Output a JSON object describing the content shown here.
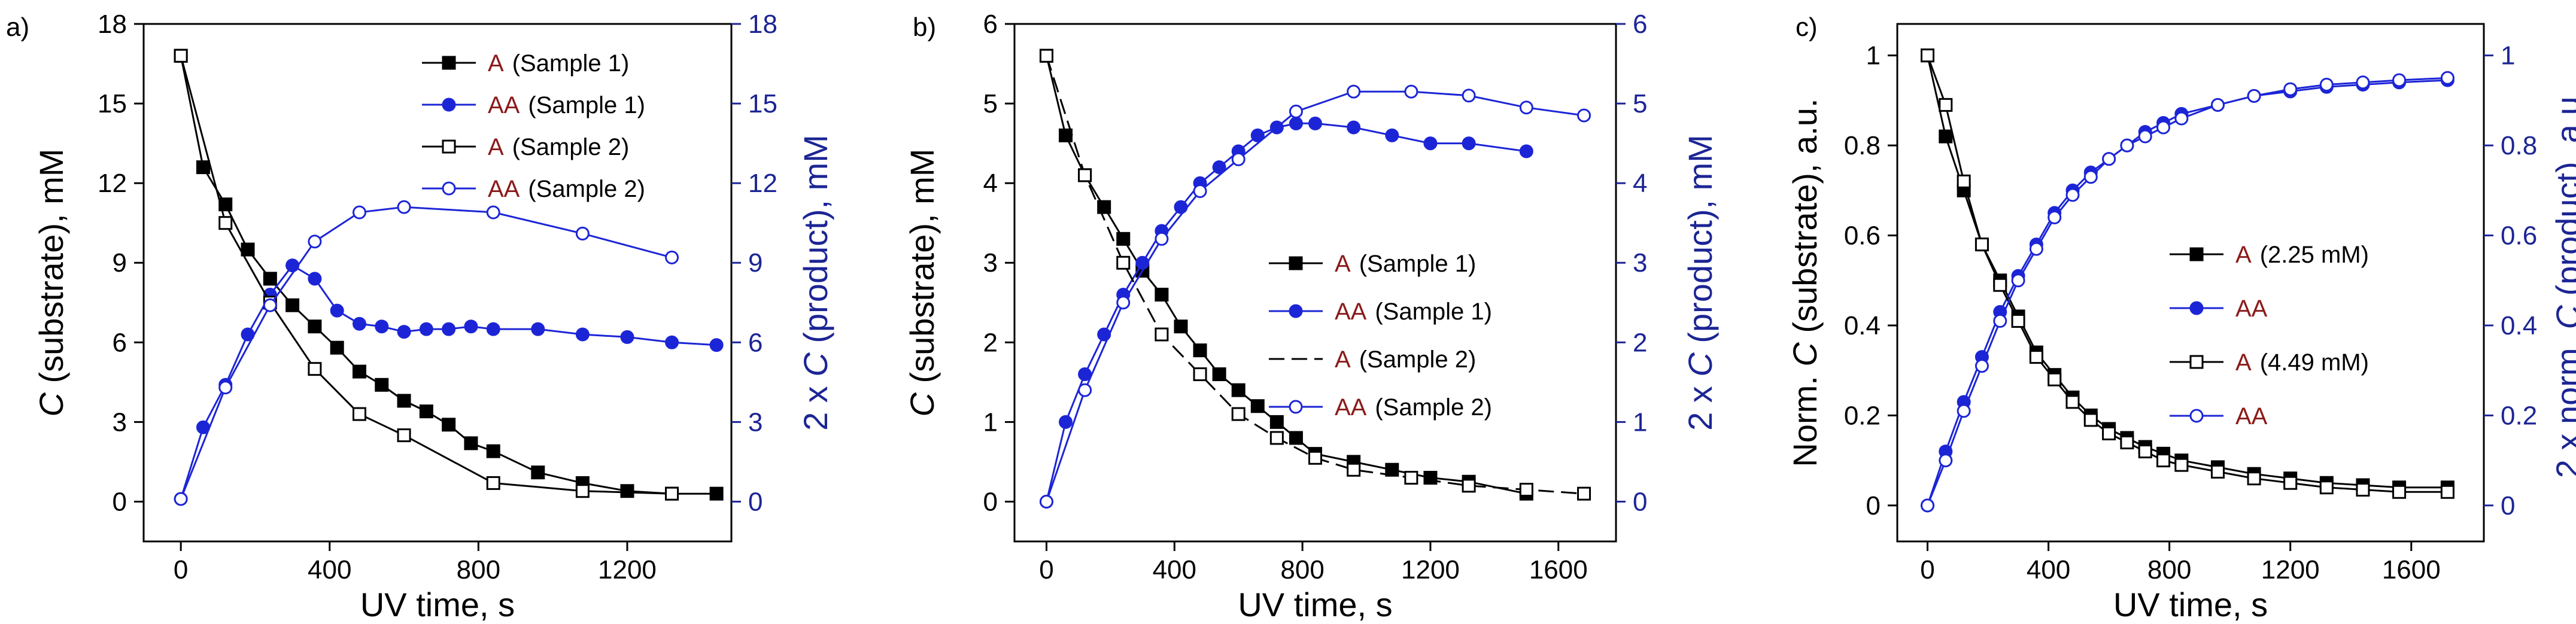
{
  "figure_title": "",
  "colors": {
    "substrate": "#000000",
    "product": "#1c25d6",
    "right_axis": "#1c2594",
    "species_label": "#8b1a1a"
  },
  "chart_data": [
    {
      "type": "line",
      "panel_label": "a)",
      "title": "",
      "xlabel": "UV time, s",
      "ylabel_left": {
        "italic": "C",
        "rest": " (substrate), mM"
      },
      "ylabel_right": {
        "prefix": "2 x ",
        "italic": "C",
        "rest": " (product), mM"
      },
      "xlim": [
        -100,
        1480
      ],
      "ylim": [
        -1.5,
        18
      ],
      "ylim_right": [
        -1.5,
        18
      ],
      "xticks": [
        0,
        400,
        800,
        1200
      ],
      "yticks": [
        0,
        3,
        6,
        9,
        12,
        15,
        18
      ],
      "yticks_right": [
        0,
        3,
        6,
        9,
        12,
        15,
        18
      ],
      "legend_position": "top-right",
      "series": [
        {
          "name": "Sample 1",
          "label_species": "A",
          "label_detail": "(Sample 1)",
          "marker": "square-filled",
          "line": "solid",
          "color": "#000000",
          "axis": "left",
          "x": [
            0,
            60,
            120,
            180,
            240,
            300,
            360,
            420,
            480,
            540,
            600,
            660,
            720,
            780,
            840,
            960,
            1080,
            1200,
            1320,
            1440
          ],
          "y": [
            16.8,
            12.6,
            11.2,
            9.5,
            8.4,
            7.4,
            6.6,
            5.8,
            4.9,
            4.4,
            3.8,
            3.4,
            2.9,
            2.2,
            1.9,
            1.1,
            0.7,
            0.4,
            0.3,
            0.3
          ]
        },
        {
          "name": "Sample 1",
          "label_species": "AA",
          "label_detail": "(Sample 1)",
          "marker": "circle-filled",
          "line": "solid",
          "color": "#1c25d6",
          "axis": "right",
          "x": [
            0,
            60,
            120,
            180,
            240,
            300,
            360,
            420,
            480,
            540,
            600,
            660,
            720,
            780,
            840,
            960,
            1080,
            1200,
            1320,
            1440
          ],
          "y": [
            0.1,
            2.8,
            4.4,
            6.3,
            7.8,
            8.9,
            8.4,
            7.2,
            6.7,
            6.6,
            6.4,
            6.5,
            6.5,
            6.6,
            6.5,
            6.5,
            6.3,
            6.2,
            6.0,
            5.9
          ]
        },
        {
          "name": "Sample 2",
          "label_species": "A",
          "label_detail": "(Sample 2)",
          "marker": "square-open",
          "line": "solid",
          "color": "#000000",
          "axis": "left",
          "x": [
            0,
            120,
            240,
            360,
            480,
            600,
            840,
            1080,
            1320
          ],
          "y": [
            16.8,
            10.5,
            7.5,
            5.0,
            3.3,
            2.5,
            0.7,
            0.4,
            0.3
          ]
        },
        {
          "name": "Sample 2",
          "label_species": "AA",
          "label_detail": "(Sample 2)",
          "marker": "circle-open",
          "line": "solid",
          "color": "#1c25d6",
          "axis": "right",
          "x": [
            0,
            120,
            240,
            360,
            480,
            600,
            840,
            1080,
            1320
          ],
          "y": [
            0.1,
            4.3,
            7.4,
            9.8,
            10.9,
            11.1,
            10.9,
            10.1,
            9.2
          ]
        }
      ]
    },
    {
      "type": "line",
      "panel_label": "b)",
      "title": "",
      "xlabel": "UV time, s",
      "ylabel_left": {
        "italic": "C",
        "rest": " (substrate), mM"
      },
      "ylabel_right": {
        "prefix": "2 x ",
        "italic": "C",
        "rest": " (product), mM"
      },
      "xlim": [
        -100,
        1780
      ],
      "ylim": [
        -0.5,
        6
      ],
      "ylim_right": [
        -0.5,
        6
      ],
      "xticks": [
        0,
        400,
        800,
        1200,
        1600
      ],
      "yticks": [
        0,
        1,
        2,
        3,
        4,
        5,
        6
      ],
      "yticks_right": [
        0,
        1,
        2,
        3,
        4,
        5,
        6
      ],
      "legend_position": "center-right",
      "series": [
        {
          "name": "Sample 1",
          "label_species": "A",
          "label_detail": "(Sample 1)",
          "marker": "square-filled",
          "line": "solid",
          "color": "#000000",
          "axis": "left",
          "x": [
            0,
            60,
            120,
            180,
            240,
            300,
            360,
            420,
            480,
            540,
            600,
            660,
            720,
            780,
            840,
            960,
            1080,
            1200,
            1320,
            1500
          ],
          "y": [
            5.6,
            4.6,
            4.1,
            3.7,
            3.3,
            2.9,
            2.6,
            2.2,
            1.9,
            1.6,
            1.4,
            1.2,
            1.0,
            0.8,
            0.6,
            0.5,
            0.4,
            0.3,
            0.25,
            0.1
          ]
        },
        {
          "name": "Sample 1",
          "label_species": "AA",
          "label_detail": "(Sample 1)",
          "marker": "circle-filled",
          "line": "solid",
          "color": "#1c25d6",
          "axis": "right",
          "x": [
            0,
            60,
            120,
            180,
            240,
            300,
            360,
            420,
            480,
            540,
            600,
            660,
            720,
            780,
            840,
            960,
            1080,
            1200,
            1320,
            1500
          ],
          "y": [
            0.0,
            1.0,
            1.6,
            2.1,
            2.6,
            3.0,
            3.4,
            3.7,
            4.0,
            4.2,
            4.4,
            4.6,
            4.7,
            4.75,
            4.75,
            4.7,
            4.6,
            4.5,
            4.5,
            4.4
          ]
        },
        {
          "name": "Sample 2",
          "label_species": "A",
          "label_detail": "(Sample 2)",
          "marker": "square-open",
          "line": "dashed",
          "color": "#000000",
          "axis": "left",
          "x": [
            0,
            120,
            240,
            360,
            480,
            600,
            720,
            840,
            960,
            1140,
            1320,
            1500,
            1680
          ],
          "y": [
            5.6,
            4.1,
            3.0,
            2.1,
            1.6,
            1.1,
            0.8,
            0.55,
            0.4,
            0.3,
            0.2,
            0.15,
            0.1
          ]
        },
        {
          "name": "Sample 2",
          "label_species": "AA",
          "label_detail": "(Sample 2)",
          "marker": "circle-open",
          "line": "solid",
          "color": "#1c25d6",
          "axis": "right",
          "x": [
            0,
            120,
            240,
            360,
            480,
            600,
            780,
            960,
            1140,
            1320,
            1500,
            1680
          ],
          "y": [
            0.0,
            1.4,
            2.5,
            3.3,
            3.9,
            4.3,
            4.9,
            5.15,
            5.15,
            5.1,
            4.95,
            4.85
          ]
        }
      ]
    },
    {
      "type": "line",
      "panel_label": "c)",
      "title": "",
      "xlabel": "UV time, s",
      "ylabel_left": {
        "prefix": "Norm. ",
        "italic": "C",
        "rest": " (substrate), a.u."
      },
      "ylabel_right": {
        "prefix": "2 x norm. ",
        "italic": "C",
        "rest": " (product), a.u."
      },
      "xlim": [
        -100,
        1840
      ],
      "ylim": [
        -0.08,
        1.07
      ],
      "ylim_right": [
        -0.08,
        1.07
      ],
      "xticks": [
        0,
        400,
        800,
        1200,
        1600
      ],
      "yticks": [
        0,
        0.2,
        0.4,
        0.6,
        0.8,
        1
      ],
      "yticks_right": [
        0,
        0.2,
        0.4,
        0.6,
        0.8,
        1
      ],
      "legend_position": "center-right",
      "series": [
        {
          "name": "A (2.25 mM)",
          "label_species": "A",
          "label_detail": "(2.25 mM)",
          "marker": "square-filled",
          "line": "solid",
          "color": "#000000",
          "axis": "left",
          "x": [
            0,
            60,
            120,
            180,
            240,
            300,
            360,
            420,
            480,
            540,
            600,
            660,
            720,
            780,
            840,
            960,
            1080,
            1200,
            1320,
            1440,
            1560,
            1720
          ],
          "y": [
            1.0,
            0.82,
            0.7,
            0.58,
            0.5,
            0.42,
            0.34,
            0.29,
            0.24,
            0.2,
            0.17,
            0.15,
            0.13,
            0.115,
            0.1,
            0.085,
            0.07,
            0.06,
            0.05,
            0.045,
            0.04,
            0.04
          ]
        },
        {
          "name": "AA",
          "label_species": "AA",
          "label_detail": "",
          "marker": "circle-filled",
          "line": "solid",
          "color": "#1c25d6",
          "axis": "right",
          "x": [
            0,
            60,
            120,
            180,
            240,
            300,
            360,
            420,
            480,
            540,
            600,
            660,
            720,
            780,
            840,
            960,
            1080,
            1200,
            1320,
            1440,
            1560,
            1720
          ],
          "y": [
            0.0,
            0.12,
            0.23,
            0.33,
            0.43,
            0.51,
            0.58,
            0.65,
            0.7,
            0.74,
            0.77,
            0.8,
            0.83,
            0.85,
            0.87,
            0.89,
            0.91,
            0.92,
            0.93,
            0.935,
            0.94,
            0.945
          ]
        },
        {
          "name": "A (4.49 mM)",
          "label_species": "A",
          "label_detail": "(4.49 mM)",
          "marker": "square-open",
          "line": "solid",
          "color": "#000000",
          "axis": "left",
          "x": [
            0,
            60,
            120,
            180,
            240,
            300,
            360,
            420,
            480,
            540,
            600,
            660,
            720,
            780,
            840,
            960,
            1080,
            1200,
            1320,
            1440,
            1560,
            1720
          ],
          "y": [
            1.0,
            0.89,
            0.72,
            0.58,
            0.49,
            0.41,
            0.33,
            0.28,
            0.23,
            0.19,
            0.16,
            0.14,
            0.12,
            0.1,
            0.09,
            0.075,
            0.06,
            0.05,
            0.04,
            0.035,
            0.03,
            0.03
          ]
        },
        {
          "name": "AA",
          "label_species": "AA",
          "label_detail": "",
          "marker": "circle-open",
          "line": "solid",
          "color": "#1c25d6",
          "axis": "right",
          "x": [
            0,
            60,
            120,
            180,
            240,
            300,
            360,
            420,
            480,
            540,
            600,
            660,
            720,
            780,
            840,
            960,
            1080,
            1200,
            1320,
            1440,
            1560,
            1720
          ],
          "y": [
            0.0,
            0.1,
            0.21,
            0.31,
            0.41,
            0.5,
            0.57,
            0.64,
            0.69,
            0.73,
            0.77,
            0.8,
            0.82,
            0.84,
            0.86,
            0.89,
            0.91,
            0.925,
            0.935,
            0.94,
            0.945,
            0.95
          ]
        }
      ]
    }
  ]
}
